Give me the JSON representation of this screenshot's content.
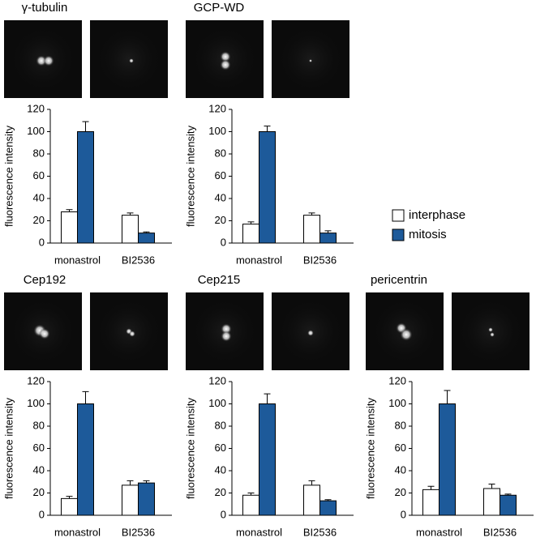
{
  "chart_data": [
    {
      "type": "bar",
      "title": "γ-tubulin",
      "ylabel": "fluorescence intensity",
      "categories": [
        "monastrol",
        "BI2536"
      ],
      "series": [
        {
          "name": "interphase",
          "color": "#ffffff",
          "values": [
            28,
            25
          ],
          "errors": [
            2,
            2
          ]
        },
        {
          "name": "mitosis",
          "color": "#1d5a9a",
          "values": [
            100,
            9
          ],
          "errors": [
            9,
            1
          ]
        }
      ],
      "ylim": [
        0,
        120
      ],
      "yticks": [
        0,
        20,
        40,
        60,
        80,
        100,
        120
      ]
    },
    {
      "type": "bar",
      "title": "GCP-WD",
      "ylabel": "fluorescence intensity",
      "categories": [
        "monastrol",
        "BI2536"
      ],
      "series": [
        {
          "name": "interphase",
          "color": "#ffffff",
          "values": [
            17,
            25
          ],
          "errors": [
            2,
            2
          ]
        },
        {
          "name": "mitosis",
          "color": "#1d5a9a",
          "values": [
            100,
            9
          ],
          "errors": [
            5,
            2
          ]
        }
      ],
      "ylim": [
        0,
        120
      ],
      "yticks": [
        0,
        20,
        40,
        60,
        80,
        100,
        120
      ]
    },
    {
      "type": "bar",
      "title": "Cep192",
      "ylabel": "fluorescence intensity",
      "categories": [
        "monastrol",
        "BI2536"
      ],
      "series": [
        {
          "name": "interphase",
          "color": "#ffffff",
          "values": [
            15,
            27
          ],
          "errors": [
            2,
            4
          ]
        },
        {
          "name": "mitosis",
          "color": "#1d5a9a",
          "values": [
            100,
            29
          ],
          "errors": [
            11,
            2
          ]
        }
      ],
      "ylim": [
        0,
        120
      ],
      "yticks": [
        0,
        20,
        40,
        60,
        80,
        100,
        120
      ]
    },
    {
      "type": "bar",
      "title": "Cep215",
      "ylabel": "fluorescence intensity",
      "categories": [
        "monastrol",
        "BI2536"
      ],
      "series": [
        {
          "name": "interphase",
          "color": "#ffffff",
          "values": [
            18,
            27
          ],
          "errors": [
            2,
            4
          ]
        },
        {
          "name": "mitosis",
          "color": "#1d5a9a",
          "values": [
            100,
            13
          ],
          "errors": [
            9,
            1
          ]
        }
      ],
      "ylim": [
        0,
        120
      ],
      "yticks": [
        0,
        20,
        40,
        60,
        80,
        100,
        120
      ]
    },
    {
      "type": "bar",
      "title": "pericentrin",
      "ylabel": "fluorescence intensity",
      "categories": [
        "monastrol",
        "BI2536"
      ],
      "series": [
        {
          "name": "interphase",
          "color": "#ffffff",
          "values": [
            23,
            24
          ],
          "errors": [
            3,
            4
          ]
        },
        {
          "name": "mitosis",
          "color": "#1d5a9a",
          "values": [
            100,
            18
          ],
          "errors": [
            12,
            1
          ]
        }
      ],
      "ylim": [
        0,
        120
      ],
      "yticks": [
        0,
        20,
        40,
        60,
        80,
        100,
        120
      ]
    }
  ]
}
